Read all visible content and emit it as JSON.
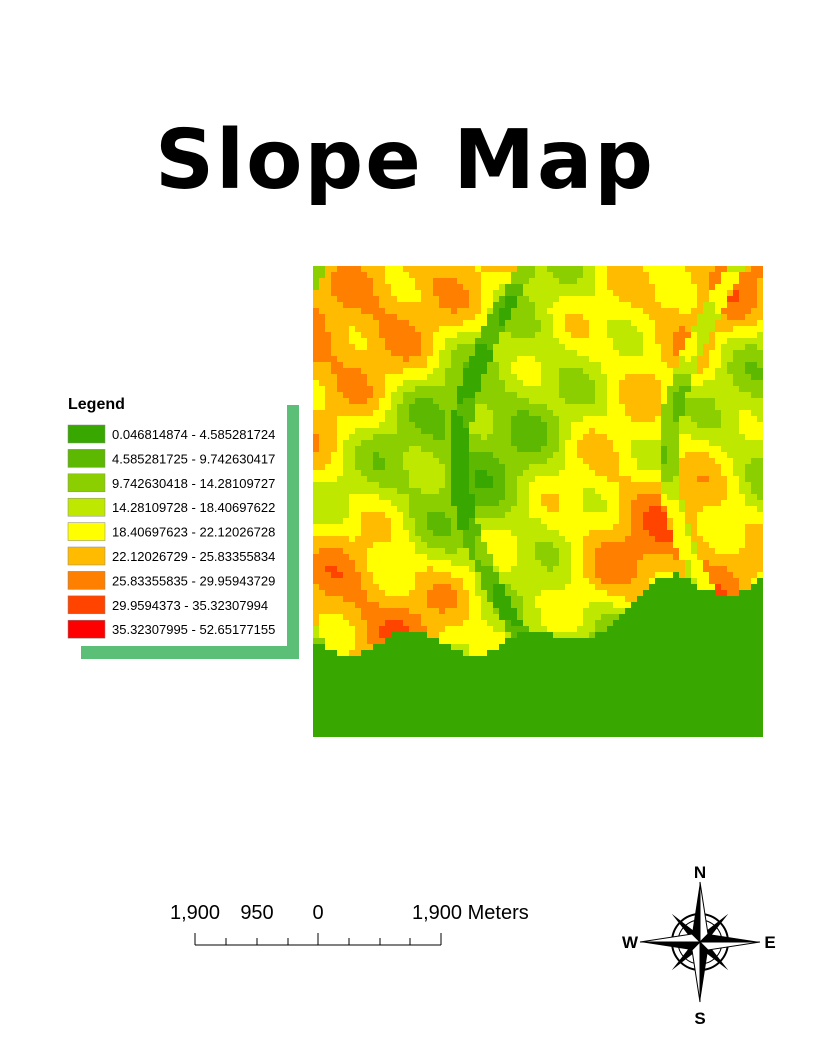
{
  "title": "Slope Map",
  "legend": {
    "title": "Legend",
    "items": [
      {
        "label": "0.046814874 - 4.585281724",
        "color": "#38a800"
      },
      {
        "label": "4.585281725 - 9.742630417",
        "color": "#5cb800"
      },
      {
        "label": "9.742630418 - 14.28109727",
        "color": "#8ccf00"
      },
      {
        "label": "14.28109728 - 18.40697622",
        "color": "#bfe800"
      },
      {
        "label": "18.40697623 - 22.12026728",
        "color": "#ffff00"
      },
      {
        "label": "22.12026729 - 25.83355834",
        "color": "#ffbb00"
      },
      {
        "label": "25.83355835 - 29.95943729",
        "color": "#ff8000"
      },
      {
        "label": "29.9594373 - 35.32307994",
        "color": "#ff4400"
      },
      {
        "label": "35.32307995 - 52.65177155",
        "color": "#ff0000"
      }
    ]
  },
  "scale_bar": {
    "labels": [
      "1,900",
      "950",
      "0",
      "1,900 Meters"
    ]
  },
  "north_arrow": {
    "n": "N",
    "e": "E",
    "s": "S",
    "w": "W"
  }
}
